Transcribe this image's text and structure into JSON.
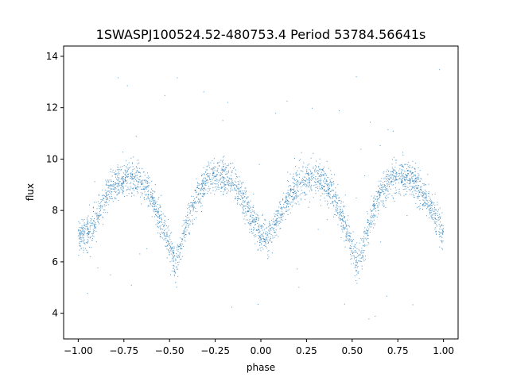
{
  "chart_data": {
    "type": "scatter",
    "title": "1SWASPJ100524.52-480753.4 Period 53784.56641s",
    "xlabel": "phase",
    "ylabel": "flux",
    "xlim": [
      -1.08,
      1.08
    ],
    "ylim": [
      3.0,
      14.4
    ],
    "x_ticks": [
      -1.0,
      -0.75,
      -0.5,
      -0.25,
      0.0,
      0.25,
      0.5,
      0.75,
      1.0
    ],
    "x_tick_labels": [
      "−1.00",
      "−0.75",
      "−0.50",
      "−0.25",
      "0.00",
      "0.25",
      "0.50",
      "0.75",
      "1.00"
    ],
    "y_ticks": [
      4,
      6,
      8,
      10,
      12,
      14
    ],
    "y_tick_labels": [
      "4",
      "6",
      "8",
      "10",
      "12",
      "14"
    ],
    "grid": false,
    "legend": "none",
    "point_color": "#1f77b4",
    "series": [
      {
        "x": [
          -1.0,
          -0.95,
          -0.9,
          -0.85,
          -0.8,
          -0.75,
          -0.7,
          -0.65,
          -0.6,
          -0.55,
          -0.5,
          -0.47,
          -0.45,
          -0.4,
          -0.35,
          -0.3,
          -0.25,
          -0.2,
          -0.15,
          -0.1,
          -0.05,
          0.0,
          0.03,
          0.05,
          0.1,
          0.15,
          0.2,
          0.25,
          0.3,
          0.35,
          0.4,
          0.45,
          0.5,
          0.53,
          0.55,
          0.6,
          0.65,
          0.7,
          0.75,
          0.8,
          0.85,
          0.9,
          0.95,
          1.0
        ],
        "y": [
          7.0,
          7.1,
          7.7,
          8.5,
          9.0,
          9.2,
          9.3,
          9.1,
          8.6,
          7.6,
          6.6,
          5.9,
          6.3,
          7.6,
          8.6,
          9.1,
          9.3,
          9.3,
          9.0,
          8.5,
          7.7,
          7.1,
          6.9,
          7.1,
          7.7,
          8.5,
          9.0,
          9.2,
          9.3,
          9.1,
          8.6,
          7.6,
          6.6,
          5.9,
          6.3,
          7.6,
          8.6,
          9.1,
          9.3,
          9.3,
          9.0,
          8.5,
          7.8,
          7.1
        ]
      }
    ]
  }
}
